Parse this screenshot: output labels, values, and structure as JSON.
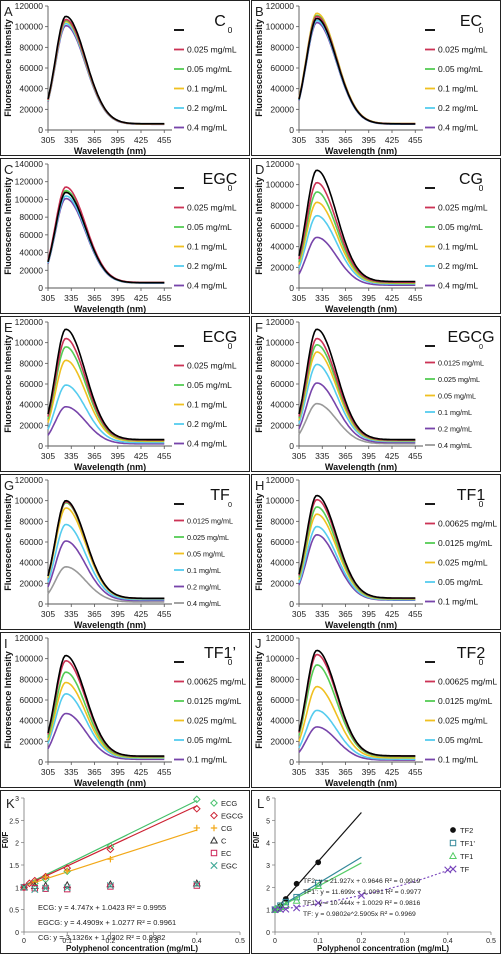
{
  "panels": [
    {
      "letter": "A",
      "name": "C",
      "ymax": 120000,
      "ystep": 20000,
      "legend": [
        "0",
        "0.025 mg/mL",
        "0.05 mg/mL",
        "0.1 mg/mL",
        "0.2 mg/mL",
        "0.4 mg/mL"
      ],
      "colors": [
        "#000000",
        "#cc3355",
        "#55cc55",
        "#f0c020",
        "#55ccee",
        "#7744aa"
      ],
      "peaks": [
        110000,
        107000,
        106000,
        105000,
        103000,
        101000
      ]
    },
    {
      "letter": "B",
      "name": "EC",
      "ymax": 120000,
      "ystep": 20000,
      "legend": [
        "0",
        "0.025 mg/mL",
        "0.05 mg/mL",
        "0.1 mg/mL",
        "0.2 mg/mL",
        "0.4 mg/mL"
      ],
      "colors": [
        "#000000",
        "#cc3355",
        "#55cc55",
        "#f0c020",
        "#55ccee",
        "#7744aa"
      ],
      "peaks": [
        108000,
        110000,
        111000,
        113000,
        106000,
        104000
      ]
    },
    {
      "letter": "C",
      "name": "EGC",
      "ymax": 140000,
      "ystep": 20000,
      "legend": [
        "0",
        "0.025 mg/mL",
        "0.05 mg/mL",
        "0.1 mg/mL",
        "0.2 mg/mL",
        "0.4 mg/mL"
      ],
      "colors": [
        "#000000",
        "#cc3355",
        "#55cc55",
        "#f0c020",
        "#55ccee",
        "#7744aa"
      ],
      "peaks": [
        108000,
        114000,
        110000,
        109000,
        104000,
        101000
      ]
    },
    {
      "letter": "D",
      "name": "CG",
      "ymax": 120000,
      "ystep": 20000,
      "legend": [
        "0",
        "0.025 mg/mL",
        "0.05 mg/mL",
        "0.1 mg/mL",
        "0.2 mg/mL",
        "0.4 mg/mL"
      ],
      "colors": [
        "#000000",
        "#cc3355",
        "#55cc55",
        "#f0c020",
        "#55ccee",
        "#7744aa"
      ],
      "peaks": [
        114000,
        102000,
        93000,
        83000,
        70000,
        49000
      ]
    },
    {
      "letter": "E",
      "name": "ECG",
      "ymax": 120000,
      "ystep": 20000,
      "legend": [
        "0",
        "0.025 mg/mL",
        "0.05 mg/mL",
        "0.1 mg/mL",
        "0.2 mg/mL",
        "0.4 mg/mL"
      ],
      "colors": [
        "#000000",
        "#cc3355",
        "#55cc55",
        "#f0c020",
        "#55ccee",
        "#7744aa"
      ],
      "peaks": [
        113000,
        104000,
        96000,
        83000,
        59000,
        38000
      ]
    },
    {
      "letter": "F",
      "name": "EGCG",
      "ymax": 120000,
      "ystep": 20000,
      "legend": [
        "0",
        "0.0125 mg/mL",
        "0.025 mg/mL",
        "0.05 mg/mL",
        "0.1 mg/mL",
        "0.2 mg/mL",
        "0.4 mg/mL"
      ],
      "colors": [
        "#000000",
        "#cc3355",
        "#55cc55",
        "#f0c020",
        "#55ccee",
        "#7744aa",
        "#999999"
      ],
      "peaks": [
        113000,
        104000,
        98000,
        91000,
        79000,
        61000,
        41000
      ]
    },
    {
      "letter": "G",
      "name": "TF",
      "ymax": 120000,
      "ystep": 20000,
      "legend": [
        "0",
        "0.0125 mg/mL",
        "0.025 mg/mL",
        "0.05 mg/mL",
        "0.1 mg/mL",
        "0.2 mg/mL",
        "0.4 mg/mL"
      ],
      "colors": [
        "#000000",
        "#cc3355",
        "#55cc55",
        "#f0c020",
        "#55ccee",
        "#7744aa",
        "#999999"
      ],
      "peaks": [
        100000,
        99000,
        98000,
        93000,
        77000,
        61000,
        36000
      ]
    },
    {
      "letter": "H",
      "name": "TF1",
      "ymax": 120000,
      "ystep": 20000,
      "legend": [
        "0",
        "0.00625 mg/mL",
        "0.0125 mg/mL",
        "0.025 mg/mL",
        "0.05 mg/mL",
        "0.1 mg/mL"
      ],
      "colors": [
        "#000000",
        "#cc3355",
        "#55cc55",
        "#f0c020",
        "#55ccee",
        "#7744aa"
      ],
      "peaks": [
        105000,
        101000,
        94000,
        87000,
        75000,
        67000
      ]
    },
    {
      "letter": "I",
      "name": "TF1’",
      "ymax": 120000,
      "ystep": 20000,
      "legend": [
        "0",
        "0.00625 mg/mL",
        "0.0125 mg/mL",
        "0.025 mg/mL",
        "0.05 mg/mL",
        "0.1 mg/mL"
      ],
      "colors": [
        "#000000",
        "#cc3355",
        "#55cc55",
        "#f0c020",
        "#55ccee",
        "#7744aa"
      ],
      "peaks": [
        103000,
        98000,
        87000,
        77000,
        66000,
        47000
      ]
    },
    {
      "letter": "J",
      "name": "TF2",
      "ymax": 120000,
      "ystep": 20000,
      "legend": [
        "0",
        "0.00625 mg/mL",
        "0.0125 mg/mL",
        "0.025 mg/mL",
        "0.05 mg/mL",
        "0.1 mg/mL"
      ],
      "colors": [
        "#000000",
        "#cc3355",
        "#55cc55",
        "#f0c020",
        "#55ccee",
        "#7744aa"
      ],
      "peaks": [
        108000,
        104000,
        94000,
        73000,
        50000,
        34000
      ]
    }
  ],
  "spectra_x": {
    "ticks": [
      305,
      335,
      365,
      395,
      425,
      455
    ],
    "range": [
      305,
      465
    ]
  },
  "labels": {
    "fluor_ylabel": "Fluorescence Intensity",
    "wavelength_xlabel": "Wavelength (nm)",
    "ratio_ylabel": "F0/F",
    "conc_xlabel": "Polyphenol concentration (mg/mL)"
  },
  "chart_data": [
    {
      "type": "scatter",
      "panel": "K",
      "xlabel": "Polyphenol concentration (mg/mL)",
      "ylabel": "F0/F",
      "xlim": [
        0,
        0.5
      ],
      "ylim": [
        0,
        3
      ],
      "xticks": [
        "0",
        "0.1",
        "0.2",
        "0.3",
        "0.4",
        "0.5"
      ],
      "yticks": [
        "0",
        "0.5",
        "1",
        "1.5",
        "2",
        "2.5",
        "3"
      ],
      "series": [
        {
          "name": "ECG",
          "color": "#44c06a",
          "marker": "diamond",
          "x": [
            0,
            0.025,
            0.05,
            0.1,
            0.2,
            0.4
          ],
          "y": [
            1,
            1.09,
            1.18,
            1.36,
            1.92,
            2.97
          ],
          "fit": [
            4.747,
            1.0423
          ]
        },
        {
          "name": "EGCG",
          "color": "#cc2233",
          "marker": "diamond",
          "x": [
            0,
            0.0125,
            0.025,
            0.05,
            0.1,
            0.2,
            0.4
          ],
          "y": [
            1,
            1.09,
            1.15,
            1.24,
            1.43,
            1.85,
            2.76
          ],
          "fit": [
            4.4909,
            1.0277
          ]
        },
        {
          "name": "CG",
          "color": "#f2a818",
          "marker": "plus",
          "x": [
            0,
            0.025,
            0.05,
            0.1,
            0.2,
            0.4
          ],
          "y": [
            1,
            1.12,
            1.23,
            1.37,
            1.63,
            2.33
          ],
          "fit": [
            3.1326,
            1.0302
          ]
        },
        {
          "name": "C",
          "color": "#333333",
          "marker": "triangle",
          "x": [
            0,
            0.025,
            0.05,
            0.1,
            0.2,
            0.4
          ],
          "y": [
            1,
            1.03,
            1.04,
            1.05,
            1.07,
            1.09
          ]
        },
        {
          "name": "EC",
          "color": "#cc2255",
          "marker": "square",
          "x": [
            0,
            0.025,
            0.05,
            0.1,
            0.2,
            0.4
          ],
          "y": [
            1,
            0.98,
            0.97,
            0.96,
            1.02,
            1.04
          ]
        },
        {
          "name": "EGC",
          "color": "#44aa99",
          "marker": "x",
          "x": [
            0,
            0.025,
            0.05,
            0.1,
            0.2,
            0.4
          ],
          "y": [
            1,
            0.95,
            0.98,
            0.99,
            1.04,
            1.07
          ]
        }
      ],
      "equations": [
        "ECG: y = 4.747x + 1.0423 R² = 0.9955",
        "EGCG: y = 4.4909x + 1.0277 R² = 0.9961",
        "CG: y = 3.1326x + 1.0302 R² = 0.9982"
      ]
    },
    {
      "type": "scatter",
      "panel": "L",
      "xlabel": "Polyphenol concentration (mg/mL)",
      "ylabel": "F0/F",
      "xlim": [
        0,
        0.5
      ],
      "ylim": [
        0,
        6
      ],
      "xticks": [
        "0",
        "0.1",
        "0.2",
        "0.3",
        "0.4",
        "0.5"
      ],
      "yticks": [
        "0",
        "1",
        "2",
        "3",
        "4",
        "5",
        "6"
      ],
      "series": [
        {
          "name": "TF2",
          "color": "#111111",
          "marker": "circle",
          "x": [
            0,
            0.00625,
            0.0125,
            0.025,
            0.05,
            0.1
          ],
          "y": [
            1,
            1.04,
            1.15,
            1.48,
            2.16,
            3.12
          ],
          "fit": [
            21.927,
            0.9646
          ]
        },
        {
          "name": "TF1’",
          "color": "#338899",
          "marker": "square",
          "x": [
            0,
            0.00625,
            0.0125,
            0.025,
            0.05,
            0.1
          ],
          "y": [
            1,
            1.05,
            1.18,
            1.34,
            1.56,
            2.19
          ],
          "fit": [
            11.699,
            1.0091
          ]
        },
        {
          "name": "TF1",
          "color": "#55cc66",
          "marker": "triangle",
          "x": [
            0,
            0.00625,
            0.0125,
            0.025,
            0.05,
            0.1
          ],
          "y": [
            1,
            1.04,
            1.12,
            1.21,
            1.4,
            2.06
          ],
          "fit": [
            10.444,
            1.0029
          ]
        },
        {
          "name": "TF",
          "color": "#7744bb",
          "marker": "x",
          "x": [
            0,
            0.0125,
            0.025,
            0.05,
            0.1,
            0.2,
            0.4
          ],
          "y": [
            1,
            1.01,
            1.02,
            1.08,
            1.3,
            1.64,
            2.78
          ],
          "expfit": [
            0.9802,
            2.5905
          ]
        }
      ],
      "equations": [
        "TF2: y = 21.927x + 0.9646 R² = 0.9919",
        "TF1’: y = 11.699x + 1.0091 R² = 0.9977",
        "TF1: y = 10.444x + 1.0029 R² = 0.9816",
        "TF: y = 0.9802e^2.5905x R² = 0.9969"
      ]
    }
  ]
}
